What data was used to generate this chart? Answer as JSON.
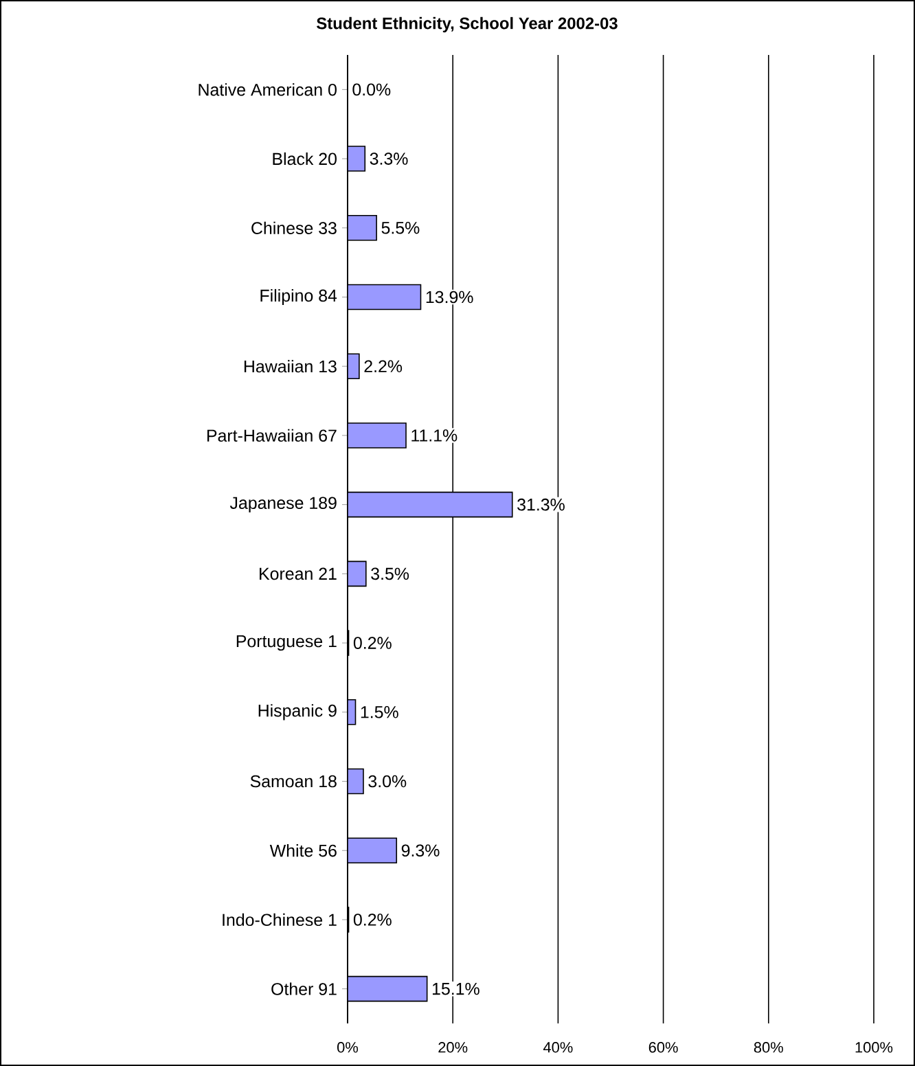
{
  "chart_data": {
    "type": "bar",
    "orientation": "horizontal",
    "title": "Student Ethnicity, School Year 2002-03",
    "categories": [
      "Native American  0",
      "Black  20",
      "Chinese  33",
      "Filipino  84",
      "Hawaiian  13",
      "Part-Hawaiian  67",
      "Japanese  189",
      "Korean  21",
      "Portuguese  1",
      "Hispanic  9",
      "Samoan  18",
      "White  56",
      "Indo-Chinese  1",
      "Other  91"
    ],
    "values": [
      0.0,
      3.3,
      5.5,
      13.9,
      2.2,
      11.1,
      31.3,
      3.5,
      0.2,
      1.5,
      3.0,
      9.3,
      0.2,
      15.1
    ],
    "value_labels": [
      "0.0%",
      "3.3%",
      "5.5%",
      "13.9%",
      "2.2%",
      "11.1%",
      "31.3%",
      "3.5%",
      "0.2%",
      "1.5%",
      "3.0%",
      "9.3%",
      "0.2%",
      "15.1%"
    ],
    "color": "#9999ff",
    "xlim": [
      0,
      100
    ],
    "xticks": [
      {
        "value": 0,
        "label": "0%"
      },
      {
        "value": 20,
        "label": "20%"
      },
      {
        "value": 40,
        "label": "40%"
      },
      {
        "value": 60,
        "label": "60%"
      },
      {
        "value": 80,
        "label": "80%"
      },
      {
        "value": 100,
        "label": "100%"
      }
    ],
    "grid": "x"
  }
}
